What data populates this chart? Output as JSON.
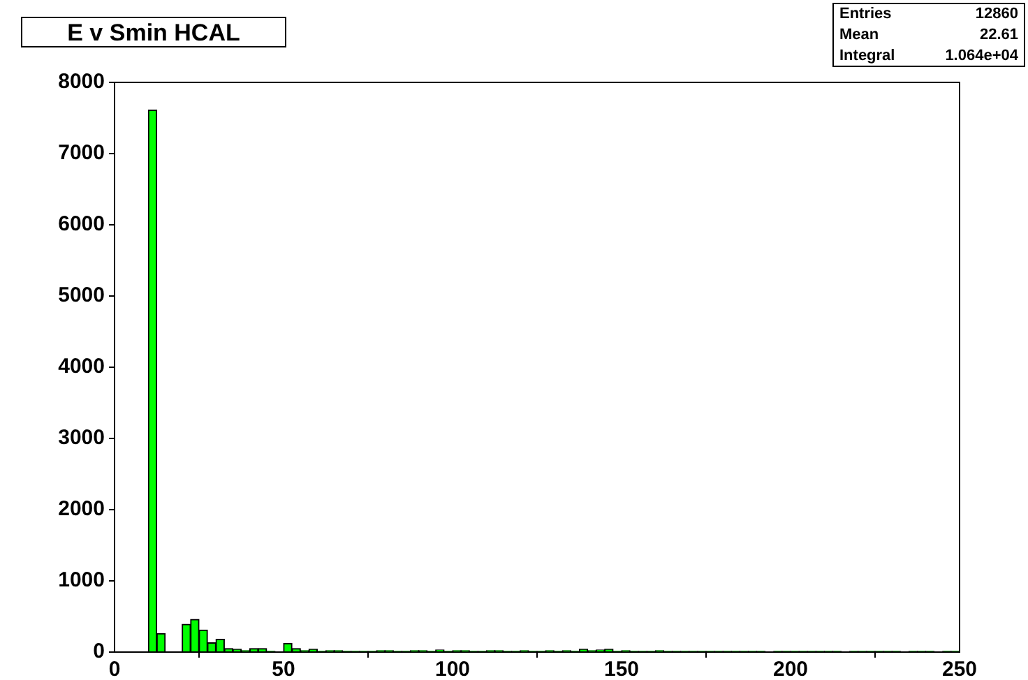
{
  "chart_data": {
    "type": "histogram",
    "title": "E v Smin HCAL",
    "annotations": [
      "Entries",
      "12860",
      "Mean",
      "22.61",
      "Integral",
      "1.064e+04"
    ],
    "bins": [
      0,
      2.5,
      5,
      7.5,
      10,
      12.5,
      15,
      17.5,
      20,
      22.5,
      25,
      27.5,
      30,
      32.5,
      35,
      37.5,
      40,
      42.5,
      45,
      47.5,
      50,
      52.5,
      55,
      57.5,
      60,
      62.5,
      65,
      67.5,
      70,
      72.5,
      75,
      77.5,
      80,
      82.5,
      85,
      87.5,
      90,
      92.5,
      95,
      97.5,
      100,
      102.5,
      105,
      107.5,
      110,
      112.5,
      115,
      117.5,
      120,
      122.5,
      125,
      127.5,
      130,
      132.5,
      135,
      137.5,
      140,
      142.5,
      145,
      147.5,
      150,
      152.5,
      155,
      157.5,
      160,
      162.5,
      165,
      167.5,
      170,
      172.5,
      175,
      177.5,
      180,
      182.5,
      185,
      187.5,
      190,
      192.5,
      195,
      197.5,
      200,
      202.5,
      205,
      207.5,
      210,
      212.5,
      215,
      217.5,
      220,
      222.5,
      225,
      227.5,
      230,
      232.5,
      235,
      237.5,
      240,
      242.5,
      245,
      247.5,
      250
    ],
    "values": [
      0,
      0,
      0,
      0,
      7610,
      260,
      0,
      0,
      390,
      460,
      310,
      130,
      180,
      50,
      40,
      20,
      50,
      50,
      10,
      0,
      120,
      50,
      20,
      40,
      10,
      20,
      20,
      10,
      10,
      10,
      10,
      20,
      20,
      10,
      10,
      20,
      20,
      10,
      30,
      10,
      20,
      20,
      10,
      10,
      20,
      20,
      10,
      10,
      20,
      10,
      10,
      20,
      10,
      20,
      10,
      40,
      20,
      30,
      40,
      10,
      20,
      10,
      10,
      10,
      20,
      10,
      10,
      10,
      10,
      10,
      10,
      10,
      10,
      10,
      10,
      10,
      10,
      0,
      10,
      10,
      10,
      10,
      10,
      10,
      10,
      10,
      0,
      10,
      10,
      10,
      10,
      10,
      10,
      0,
      10,
      10,
      10,
      0,
      10,
      10
    ],
    "color": "#00ff00",
    "xlim": [
      0,
      250
    ],
    "xticks": [
      0,
      50,
      100,
      150,
      200,
      250
    ],
    "ylim": [
      0,
      8000
    ],
    "yticks": [
      0,
      1000,
      2000,
      3000,
      4000,
      5000,
      6000,
      7000,
      8000
    ]
  }
}
